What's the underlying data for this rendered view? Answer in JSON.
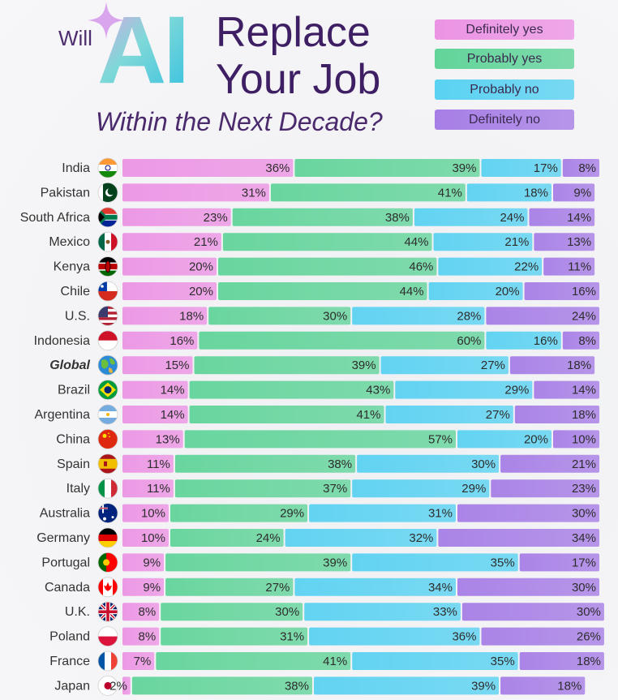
{
  "title": {
    "will": "Will",
    "ai": "AI",
    "line1": "Replace",
    "line2": "Your Job",
    "subtitle": "Within the Next Decade?"
  },
  "legend": [
    {
      "label": "Definitely yes",
      "color": "#ec94e4"
    },
    {
      "label": "Probably yes",
      "color": "#62d49a"
    },
    {
      "label": "Probably no",
      "color": "#5ad2f2"
    },
    {
      "label": "Definitely no",
      "color": "#a77ee6"
    }
  ],
  "chart_data": {
    "type": "bar",
    "stacked": true,
    "orientation": "horizontal",
    "unit": "%",
    "categories": [
      "India",
      "Pakistan",
      "South Africa",
      "Mexico",
      "Kenya",
      "Chile",
      "U.S.",
      "Indonesia",
      "Global",
      "Brazil",
      "Argentina",
      "China",
      "Spain",
      "Italy",
      "Australia",
      "Germany",
      "Portugal",
      "Canada",
      "U.K.",
      "Poland",
      "France",
      "Japan"
    ],
    "highlight_category": "Global",
    "flag_icons": [
      "india-flag-icon",
      "pakistan-flag-icon",
      "south-africa-flag-icon",
      "mexico-flag-icon",
      "kenya-flag-icon",
      "chile-flag-icon",
      "us-flag-icon",
      "indonesia-flag-icon",
      "globe-icon",
      "brazil-flag-icon",
      "argentina-flag-icon",
      "china-flag-icon",
      "spain-flag-icon",
      "italy-flag-icon",
      "australia-flag-icon",
      "germany-flag-icon",
      "portugal-flag-icon",
      "canada-flag-icon",
      "uk-flag-icon",
      "poland-flag-icon",
      "france-flag-icon",
      "japan-flag-icon"
    ],
    "series": [
      {
        "name": "Definitely yes",
        "values": [
          36,
          31,
          23,
          21,
          20,
          20,
          18,
          16,
          15,
          14,
          14,
          13,
          11,
          11,
          10,
          10,
          9,
          9,
          8,
          8,
          7,
          2
        ]
      },
      {
        "name": "Probably yes",
        "values": [
          39,
          41,
          38,
          44,
          46,
          44,
          30,
          60,
          39,
          43,
          41,
          57,
          38,
          37,
          29,
          24,
          39,
          27,
          30,
          31,
          41,
          38
        ]
      },
      {
        "name": "Probably no",
        "values": [
          17,
          18,
          24,
          21,
          22,
          20,
          28,
          16,
          27,
          29,
          27,
          20,
          30,
          29,
          31,
          32,
          35,
          34,
          33,
          36,
          35,
          39
        ]
      },
      {
        "name": "Definitely no",
        "values": [
          8,
          9,
          14,
          13,
          11,
          16,
          24,
          8,
          18,
          14,
          18,
          10,
          21,
          23,
          30,
          34,
          17,
          30,
          30,
          26,
          18,
          18
        ]
      }
    ]
  }
}
